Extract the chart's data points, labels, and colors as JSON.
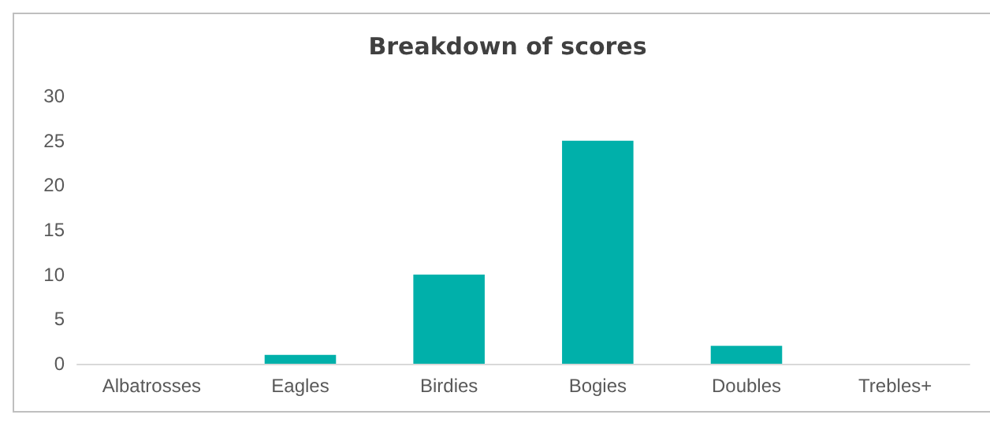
{
  "chart_data": {
    "type": "bar",
    "title": "Breakdown of scores",
    "categories": [
      "Albatrosses",
      "Eagles",
      "Birdies",
      "Bogies",
      "Doubles",
      "Trebles+"
    ],
    "values": [
      0,
      1,
      10,
      25,
      2,
      0
    ],
    "color": "#00b0aa",
    "ylim": [
      0,
      30
    ],
    "yticks": [
      0,
      5,
      10,
      15,
      20,
      25,
      30
    ],
    "grid": false
  }
}
